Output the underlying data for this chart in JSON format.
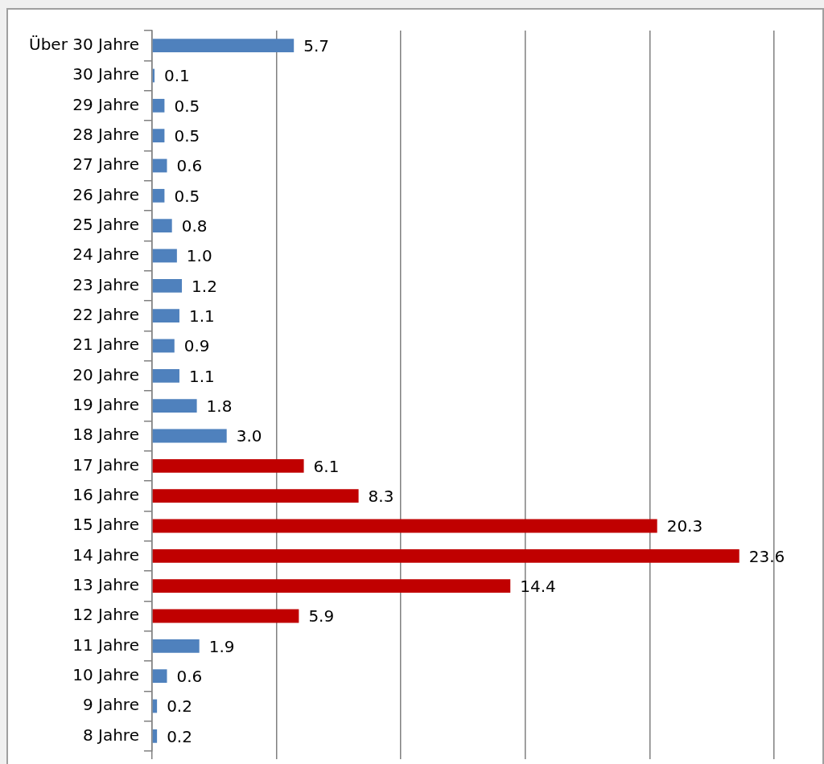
{
  "chart_data": {
    "type": "bar",
    "orientation": "horizontal",
    "categories": [
      "Über 30 Jahre",
      "30 Jahre",
      "29 Jahre",
      "28 Jahre",
      "27 Jahre",
      "26 Jahre",
      "25 Jahre",
      "24 Jahre",
      "23 Jahre",
      "22 Jahre",
      "21 Jahre",
      "20 Jahre",
      "19 Jahre",
      "18 Jahre",
      "17 Jahre",
      "16 Jahre",
      "15 Jahre",
      "14 Jahre",
      "13 Jahre",
      "12 Jahre",
      "11 Jahre",
      "10 Jahre",
      "9 Jahre",
      "8 Jahre"
    ],
    "values": [
      5.7,
      0.1,
      0.5,
      0.5,
      0.6,
      0.5,
      0.8,
      1.0,
      1.2,
      1.1,
      0.9,
      1.1,
      1.8,
      3.0,
      6.1,
      8.3,
      20.3,
      23.6,
      14.4,
      5.9,
      1.9,
      0.6,
      0.2,
      0.2
    ],
    "value_labels": [
      "5.7",
      "0.1",
      "0.5",
      "0.5",
      "0.6",
      "0.5",
      "0.8",
      "1.0",
      "1.2",
      "1.1",
      "0.9",
      "1.1",
      "1.8",
      "3.0",
      "6.1",
      "8.3",
      "20.3",
      "23.6",
      "14.4",
      "5.9",
      "1.9",
      "0.6",
      "0.2",
      "0.2"
    ],
    "colors": [
      "#4f81bd",
      "#4f81bd",
      "#4f81bd",
      "#4f81bd",
      "#4f81bd",
      "#4f81bd",
      "#4f81bd",
      "#4f81bd",
      "#4f81bd",
      "#4f81bd",
      "#4f81bd",
      "#4f81bd",
      "#4f81bd",
      "#4f81bd",
      "#c00000",
      "#c00000",
      "#c00000",
      "#c00000",
      "#c00000",
      "#c00000",
      "#4f81bd",
      "#4f81bd",
      "#4f81bd",
      "#4f81bd"
    ],
    "xlim": [
      0,
      25
    ],
    "xticks": [
      {
        "value": 0,
        "label": null
      },
      {
        "value": 5,
        "label": null
      },
      {
        "value": 10,
        "label": null
      },
      {
        "value": 15,
        "label": null
      },
      {
        "value": 20,
        "label": null
      },
      {
        "value": 25,
        "label": null
      }
    ],
    "tick_labels": "y",
    "grid": "x",
    "legend": false
  }
}
